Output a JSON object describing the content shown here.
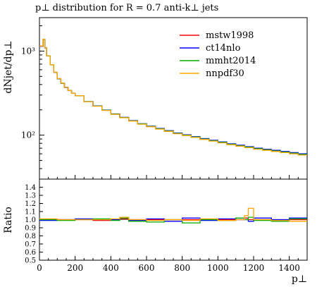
{
  "chart_data": [
    {
      "type": "line",
      "title": "p⊥ distribution for R = 0.7 anti-k⊥ jets",
      "ylabel": "dNjet/dp⊥",
      "xlabel": "",
      "xlim": [
        0,
        1500
      ],
      "ylim": [
        30,
        2500
      ],
      "yscale": "log",
      "x_ticks": [
        0,
        200,
        400,
        600,
        800,
        1000,
        1200,
        1400
      ],
      "y_tick_labels": [
        "10²",
        "10³"
      ],
      "y_ticks": [
        100,
        1000
      ],
      "legend_position": "top-right",
      "grid": false,
      "x": [
        0,
        10,
        20,
        30,
        40,
        60,
        80,
        100,
        120,
        140,
        160,
        180,
        200,
        250,
        300,
        350,
        400,
        450,
        500,
        550,
        600,
        650,
        700,
        750,
        800,
        850,
        900,
        950,
        1000,
        1050,
        1100,
        1150,
        1200,
        1250,
        1300,
        1350,
        1400,
        1450,
        1500
      ],
      "series": [
        {
          "name": "mstw1998",
          "color": "#ff0000",
          "values": [
            1150,
            1150,
            1380,
            1100,
            880,
            690,
            560,
            470,
            415,
            370,
            340,
            315,
            295,
            250,
            222,
            198,
            178,
            162,
            148,
            136,
            127,
            119,
            112,
            105,
            100,
            95,
            90,
            86,
            82,
            78,
            75,
            72,
            69,
            67,
            65,
            63,
            61,
            59,
            57
          ]
        },
        {
          "name": "ct14nlo",
          "color": "#0000ff",
          "values": [
            1140,
            1140,
            1370,
            1090,
            875,
            688,
            558,
            468,
            413,
            369,
            339,
            314,
            294,
            251,
            223,
            199,
            179,
            163,
            149,
            137,
            128,
            120,
            113,
            106,
            101,
            96,
            91,
            87,
            83,
            79,
            76,
            73,
            70,
            68,
            66,
            64,
            62,
            60,
            58
          ]
        },
        {
          "name": "mmht2014",
          "color": "#00aa00",
          "values": [
            1145,
            1145,
            1375,
            1095,
            878,
            689,
            559,
            469,
            414,
            370,
            340,
            315,
            295,
            250,
            222,
            198,
            178,
            162,
            148,
            136,
            127,
            119,
            112,
            105,
            100,
            95,
            90,
            86,
            82,
            78,
            75,
            72,
            69,
            67,
            65,
            63,
            61,
            59,
            57
          ]
        },
        {
          "name": "nnpdf30",
          "color": "#ffa500",
          "values": [
            1148,
            1148,
            1382,
            1098,
            879,
            690,
            560,
            470,
            415,
            370,
            340,
            315,
            295,
            249,
            221,
            197,
            177,
            161,
            147,
            135,
            126,
            118,
            111,
            104,
            99,
            94,
            89,
            85,
            81,
            77,
            74,
            71,
            68,
            66,
            64,
            62,
            60,
            58,
            56
          ]
        }
      ]
    },
    {
      "type": "line",
      "ylabel": "Ratio",
      "xlabel": "p⊥",
      "xlim": [
        0,
        1500
      ],
      "ylim": [
        0.5,
        1.5
      ],
      "x_ticks": [
        0,
        200,
        400,
        600,
        800,
        1000,
        1200,
        1400
      ],
      "y_ticks": [
        0.5,
        0.6,
        0.7,
        0.8,
        0.9,
        1.0,
        1.1,
        1.2,
        1.3,
        1.4
      ],
      "y_tick_labels": [
        "0.5",
        "0.6",
        "0.7",
        "0.8",
        "0.9",
        "1.0",
        "1.1",
        "1.2",
        "1.3",
        "1.4"
      ],
      "grid": false,
      "x": [
        0,
        100,
        200,
        300,
        400,
        450,
        500,
        600,
        700,
        800,
        900,
        1000,
        1100,
        1150,
        1170,
        1200,
        1300,
        1400,
        1500
      ],
      "series": [
        {
          "name": "mstw1998",
          "color": "#ff0000",
          "values": [
            1.0,
            1.0,
            1.0,
            0.99,
            1.0,
            1.01,
            1.0,
            1.0,
            1.0,
            1.0,
            1.0,
            1.0,
            1.0,
            1.02,
            1.0,
            1.0,
            1.0,
            1.0,
            1.0
          ]
        },
        {
          "name": "ct14nlo",
          "color": "#0000ff",
          "values": [
            0.99,
            1.0,
            1.01,
            1.0,
            1.0,
            1.02,
            0.99,
            1.01,
            0.98,
            1.02,
            0.99,
            1.01,
            1.0,
            1.0,
            0.98,
            1.02,
            1.0,
            1.02,
            1.0
          ]
        },
        {
          "name": "mmht2014",
          "color": "#00aa00",
          "values": [
            1.0,
            0.99,
            1.0,
            1.01,
            0.99,
            1.02,
            0.98,
            0.97,
            1.0,
            0.96,
            1.0,
            0.99,
            1.02,
            1.0,
            1.03,
            0.99,
            0.98,
            1.01,
            0.99
          ]
        },
        {
          "name": "nnpdf30",
          "color": "#ffa500",
          "values": [
            1.01,
            1.0,
            1.0,
            1.0,
            1.01,
            1.03,
            1.0,
            0.99,
            1.0,
            0.99,
            1.01,
            0.99,
            1.0,
            1.05,
            1.14,
            1.0,
            0.99,
            0.98,
            1.0
          ]
        }
      ]
    }
  ]
}
